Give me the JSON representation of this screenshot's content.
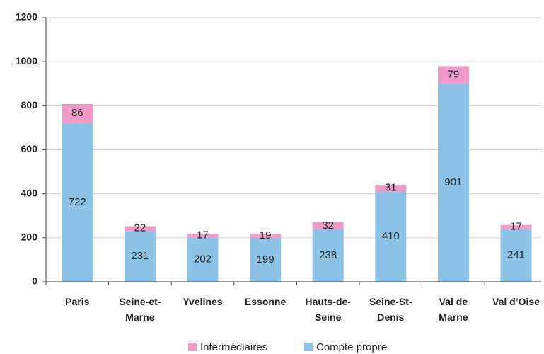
{
  "chart_data": {
    "type": "stacked_bar",
    "categories": [
      "Paris",
      "Seine-et-\nMarne",
      "Yvelines",
      "Essonne",
      "Hauts-de-\nSeine",
      "Seine-St-\nDenis",
      "Val de\nMarne",
      "Val d’Oise"
    ],
    "series": [
      {
        "name": "Compte propre",
        "color": "#8ec3e8",
        "values": [
          722,
          231,
          202,
          199,
          238,
          410,
          901,
          241
        ]
      },
      {
        "name": "Intermédiaires",
        "color": "#f19bc9",
        "values": [
          86,
          22,
          17,
          19,
          32,
          31,
          79,
          17
        ]
      }
    ],
    "ylim": [
      0,
      1200
    ],
    "yticks": [
      0,
      200,
      400,
      600,
      800,
      1000,
      1200
    ],
    "grid": true,
    "legend": "bottom"
  }
}
